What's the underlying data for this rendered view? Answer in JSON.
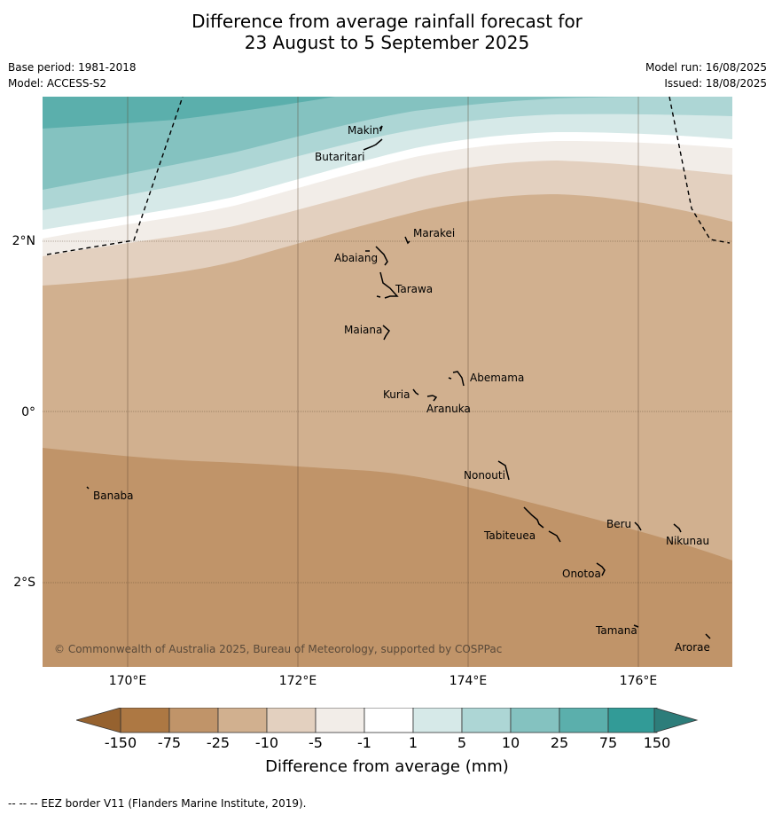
{
  "title_line1": "Difference from average rainfall forecast for",
  "title_line2": "23 August to 5 September 2025",
  "meta": {
    "base_period": "Base period: 1981-2018",
    "model": "Model: ACCESS-S2",
    "model_run": "Model run: 16/08/2025",
    "issued": "Issued: 18/08/2025"
  },
  "lat_labels": [
    "2°N",
    "0°",
    "2°S"
  ],
  "lon_labels": [
    "170°E",
    "172°E",
    "174°E",
    "176°E"
  ],
  "places": {
    "makin": "Makin",
    "butaritari": "Butaritari",
    "marakei": "Marakei",
    "abaiang": "Abaiang",
    "tarawa": "Tarawa",
    "maiana": "Maiana",
    "abemama": "Abemama",
    "kuria": "Kuria",
    "aranuka": "Aranuka",
    "nonouti": "Nonouti",
    "banaba": "Banaba",
    "beru": "Beru",
    "nikunau": "Nikunau",
    "tabiteuea": "Tabiteuea",
    "onotoa": "Onotoa",
    "tamana": "Tamana",
    "arorae": "Arorae"
  },
  "copyright": "© Commonwealth of Australia 2025, Bureau of Meteorology, supported by COSPPac",
  "colorbar": {
    "ticks": [
      "-150",
      "-75",
      "-25",
      "-10",
      "-5",
      "-1",
      "1",
      "5",
      "10",
      "25",
      "75",
      "150"
    ],
    "colors": [
      "#ad7843",
      "#c09469",
      "#d1b08f",
      "#e3d0bf",
      "#f2ede8",
      "#ffffff",
      "#d6e9e8",
      "#add6d5",
      "#84c2c0",
      "#5bafac",
      "#329b97",
      "#2d7d7a"
    ],
    "low_extend_color": "#96622f",
    "title": "Difference from average (mm)"
  },
  "footer": "--  --  -- EEZ border V11 (Flanders Marine Institute, 2019)."
}
